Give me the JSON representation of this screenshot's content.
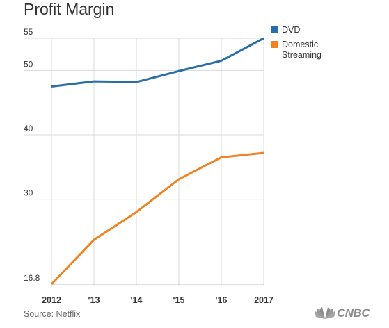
{
  "title": "Profit Margin",
  "source": "Source: Netflix",
  "logo_text": "CNBC",
  "colors": {
    "dvd": "#2a6ea8",
    "streaming": "#f0831f",
    "grid": "#d9d9d9",
    "text": "#333333"
  },
  "chart_data": {
    "type": "line",
    "title": "Profit Margin",
    "categories": [
      "2012",
      "'13",
      "'14",
      "'15",
      "'16",
      "2017"
    ],
    "ytick_labels": [
      "55",
      "50",
      "40",
      "30",
      "16.8"
    ],
    "ytick_values": [
      55,
      50,
      40,
      30,
      16.8
    ],
    "ylim": [
      16.8,
      55
    ],
    "grid": true,
    "legend_position": "right",
    "series": [
      {
        "name": "DVD",
        "values": [
          47.5,
          48.3,
          48.2,
          49.9,
          51.5,
          55.0
        ]
      },
      {
        "name": "Domestic Streaming",
        "values": [
          16.8,
          23.7,
          28.0,
          33.1,
          36.5,
          37.2
        ]
      }
    ]
  }
}
